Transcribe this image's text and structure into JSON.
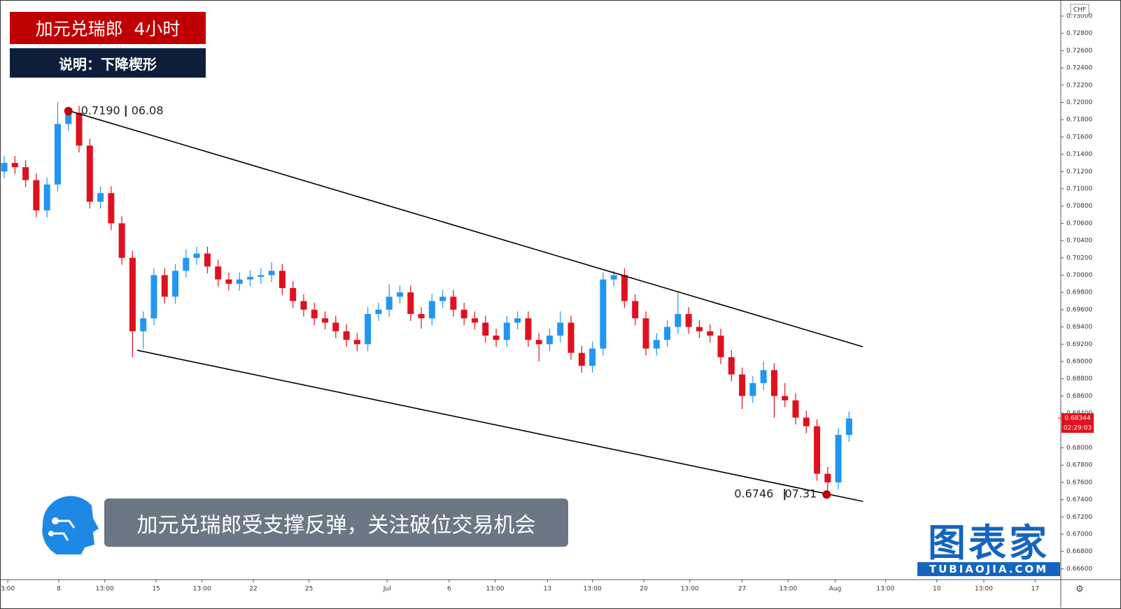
{
  "header": {
    "title": "加元兑瑞郎  4小时",
    "subtitle": "说明：下降楔形"
  },
  "caption": "加元兑瑞郎受支撑反弹，关注破位交易机会",
  "logo": {
    "text": "图表家",
    "url": "TUBIAOJIA.COM"
  },
  "chart_data": {
    "type": "candlestick",
    "up_color": "#2196f3",
    "down_color": "#e0111e",
    "x": [
      0,
      1,
      2,
      3,
      4,
      5,
      6,
      7,
      8,
      9,
      10,
      11,
      12,
      13,
      14,
      15,
      16,
      17,
      18,
      19,
      20,
      21,
      22,
      23,
      24,
      25,
      26,
      27,
      28,
      29,
      30,
      31,
      32,
      33,
      34,
      35,
      36,
      37,
      38,
      39,
      40,
      41,
      42,
      43,
      44,
      45,
      46,
      47,
      48,
      49,
      50,
      51,
      52,
      53,
      54,
      55,
      56,
      57,
      58,
      59,
      60,
      61,
      62,
      63,
      64,
      65,
      66,
      67,
      68,
      69,
      70,
      71,
      72,
      73,
      74,
      75,
      76,
      77,
      78,
      79
    ],
    "open": [
      0.712,
      0.713,
      0.7125,
      0.711,
      0.7075,
      0.7105,
      0.7175,
      0.7188,
      0.715,
      0.7085,
      0.7095,
      0.706,
      0.702,
      0.6935,
      0.695,
      0.7,
      0.6975,
      0.7005,
      0.702,
      0.7025,
      0.701,
      0.6995,
      0.699,
      0.6995,
      0.6998,
      0.7,
      0.7005,
      0.6985,
      0.697,
      0.696,
      0.695,
      0.6945,
      0.6935,
      0.6925,
      0.692,
      0.6955,
      0.696,
      0.6975,
      0.698,
      0.6955,
      0.695,
      0.697,
      0.6975,
      0.696,
      0.695,
      0.6945,
      0.693,
      0.6925,
      0.6945,
      0.695,
      0.6925,
      0.692,
      0.693,
      0.6945,
      0.691,
      0.6895,
      0.6915,
      0.6995,
      0.7,
      0.697,
      0.695,
      0.6915,
      0.6925,
      0.694,
      0.6955,
      0.694,
      0.6935,
      0.693,
      0.6905,
      0.6885,
      0.686,
      0.6875,
      0.689,
      0.686,
      0.6855,
      0.6835,
      0.6825,
      0.677,
      0.676,
      0.6815
    ],
    "high": [
      0.7138,
      0.7138,
      0.7133,
      0.7118,
      0.7113,
      0.72,
      0.7192,
      0.7196,
      0.7158,
      0.7103,
      0.7103,
      0.7068,
      0.7028,
      0.6958,
      0.7008,
      0.7008,
      0.7013,
      0.703,
      0.7033,
      0.7033,
      0.7018,
      0.7003,
      0.7003,
      0.7006,
      0.7008,
      0.7015,
      0.7013,
      0.6993,
      0.6978,
      0.6968,
      0.6958,
      0.6953,
      0.6943,
      0.6933,
      0.6963,
      0.6968,
      0.699,
      0.6988,
      0.6988,
      0.6963,
      0.6978,
      0.6983,
      0.6983,
      0.6968,
      0.6958,
      0.6953,
      0.6938,
      0.6953,
      0.6958,
      0.6958,
      0.6933,
      0.6938,
      0.6958,
      0.6953,
      0.6918,
      0.6923,
      0.7003,
      0.7005,
      0.7008,
      0.6978,
      0.6958,
      0.6933,
      0.6948,
      0.698,
      0.6963,
      0.6948,
      0.6943,
      0.6938,
      0.6913,
      0.6893,
      0.6883,
      0.69,
      0.6898,
      0.6875,
      0.6863,
      0.6843,
      0.6833,
      0.6778,
      0.6823,
      0.6842
    ],
    "low": [
      0.7112,
      0.7117,
      0.7102,
      0.7067,
      0.7067,
      0.7097,
      0.7167,
      0.7142,
      0.7077,
      0.7077,
      0.7052,
      0.7012,
      0.6905,
      0.6915,
      0.6942,
      0.6967,
      0.6967,
      0.6997,
      0.7012,
      0.7002,
      0.6987,
      0.6982,
      0.6982,
      0.6987,
      0.699,
      0.6992,
      0.6977,
      0.6962,
      0.6952,
      0.6942,
      0.6937,
      0.6927,
      0.6917,
      0.6912,
      0.6912,
      0.6947,
      0.6952,
      0.6967,
      0.6947,
      0.6938,
      0.6942,
      0.6962,
      0.6952,
      0.6942,
      0.6937,
      0.6922,
      0.6917,
      0.6917,
      0.6937,
      0.6917,
      0.69,
      0.6912,
      0.6922,
      0.6902,
      0.6887,
      0.6887,
      0.6907,
      0.6987,
      0.6962,
      0.6942,
      0.6907,
      0.6907,
      0.6917,
      0.6932,
      0.6932,
      0.6927,
      0.6922,
      0.6897,
      0.6877,
      0.6845,
      0.6852,
      0.6867,
      0.6835,
      0.6847,
      0.6827,
      0.6817,
      0.6762,
      0.6746,
      0.6752,
      0.6807
    ],
    "close": [
      0.713,
      0.7125,
      0.711,
      0.7075,
      0.7105,
      0.7175,
      0.7188,
      0.715,
      0.7085,
      0.7095,
      0.706,
      0.702,
      0.6935,
      0.695,
      0.7,
      0.6975,
      0.7005,
      0.702,
      0.7025,
      0.701,
      0.6995,
      0.699,
      0.6995,
      0.6998,
      0.7,
      0.7005,
      0.6985,
      0.697,
      0.696,
      0.695,
      0.6945,
      0.6935,
      0.6925,
      0.692,
      0.6955,
      0.696,
      0.6975,
      0.698,
      0.6955,
      0.695,
      0.697,
      0.6975,
      0.696,
      0.695,
      0.6945,
      0.693,
      0.6925,
      0.6945,
      0.695,
      0.6925,
      0.692,
      0.693,
      0.6945,
      0.691,
      0.6895,
      0.6915,
      0.6995,
      0.7,
      0.697,
      0.695,
      0.6915,
      0.6925,
      0.694,
      0.6955,
      0.694,
      0.6935,
      0.693,
      0.6905,
      0.6885,
      0.686,
      0.6875,
      0.689,
      0.686,
      0.6855,
      0.6835,
      0.6825,
      0.677,
      0.676,
      0.6815,
      0.6834
    ],
    "xlim": [
      -0.33,
      98.8
    ],
    "xticks": [
      {
        "value": 0.33,
        "label": "3:00"
      },
      {
        "value": 5.1,
        "label": "8"
      },
      {
        "value": 9.4,
        "label": "13:00"
      },
      {
        "value": 14.2,
        "label": "15"
      },
      {
        "value": 18.5,
        "label": "13:00"
      },
      {
        "value": 23.3,
        "label": "22"
      },
      {
        "value": 28.5,
        "label": "25"
      },
      {
        "value": 35.8,
        "label": "Jul"
      },
      {
        "value": 41.6,
        "label": "6"
      },
      {
        "value": 45.9,
        "label": "13:00"
      },
      {
        "value": 50.8,
        "label": "13"
      },
      {
        "value": 55.0,
        "label": "13:00"
      },
      {
        "value": 59.8,
        "label": "20"
      },
      {
        "value": 64.1,
        "label": "13:00"
      },
      {
        "value": 69.0,
        "label": "27"
      },
      {
        "value": 73.3,
        "label": "13:00"
      },
      {
        "value": 77.7,
        "label": "Aug"
      },
      {
        "value": 82.4,
        "label": "13:00"
      },
      {
        "value": 87.2,
        "label": "10"
      },
      {
        "value": 91.6,
        "label": "13:00"
      },
      {
        "value": 96.4,
        "label": "17"
      }
    ],
    "ylim": [
      0.66474,
      0.73178
    ],
    "yticks": [
      {
        "value": 0.666,
        "label": "0.66600"
      },
      {
        "value": 0.668,
        "label": "0.66800"
      },
      {
        "value": 0.67,
        "label": "0.67000"
      },
      {
        "value": 0.672,
        "label": "0.67200"
      },
      {
        "value": 0.674,
        "label": "0.67400"
      },
      {
        "value": 0.676,
        "label": "0.67600"
      },
      {
        "value": 0.678,
        "label": "0.67800"
      },
      {
        "value": 0.68,
        "label": "0.68000"
      },
      {
        "value": 0.682,
        "label": "0.68200"
      },
      {
        "value": 0.684,
        "label": "0.68400"
      },
      {
        "value": 0.686,
        "label": "0.68600"
      },
      {
        "value": 0.688,
        "label": "0.68800"
      },
      {
        "value": 0.69,
        "label": "0.69000"
      },
      {
        "value": 0.692,
        "label": "0.69200"
      },
      {
        "value": 0.694,
        "label": "0.69400"
      },
      {
        "value": 0.696,
        "label": "0.69600"
      },
      {
        "value": 0.698,
        "label": "0.69800"
      },
      {
        "value": 0.7,
        "label": "0.70000"
      },
      {
        "value": 0.702,
        "label": "0.70200"
      },
      {
        "value": 0.704,
        "label": "0.70400"
      },
      {
        "value": 0.706,
        "label": "0.70600"
      },
      {
        "value": 0.708,
        "label": "0.70800"
      },
      {
        "value": 0.71,
        "label": "0.71000"
      },
      {
        "value": 0.712,
        "label": "0.71200"
      },
      {
        "value": 0.714,
        "label": "0.71400"
      },
      {
        "value": 0.716,
        "label": "0.71600"
      },
      {
        "value": 0.718,
        "label": "0.71800"
      },
      {
        "value": 0.72,
        "label": "0.72000"
      },
      {
        "value": 0.722,
        "label": "0.72200"
      },
      {
        "value": 0.724,
        "label": "0.72400"
      },
      {
        "value": 0.726,
        "label": "0.72600"
      },
      {
        "value": 0.728,
        "label": "0.72800"
      },
      {
        "value": 0.73,
        "label": "0.73000"
      }
    ],
    "y_unit": "CHF",
    "last_price": 0.68344,
    "countdown": "02:29:03",
    "trendlines": [
      {
        "points": [
          [
            6.15,
            0.719
          ],
          [
            80.3,
            0.6917
          ]
        ]
      },
      {
        "points": [
          [
            12.43,
            0.6913
          ],
          [
            80.3,
            0.6738
          ]
        ]
      }
    ],
    "annotations": [
      {
        "x": 6,
        "price": {
          "value": 0.719,
          "label": "0.7190"
        },
        "date": "06.08"
      },
      {
        "x": 76.9,
        "price": 0.6746,
        "date": "07.31"
      }
    ]
  }
}
